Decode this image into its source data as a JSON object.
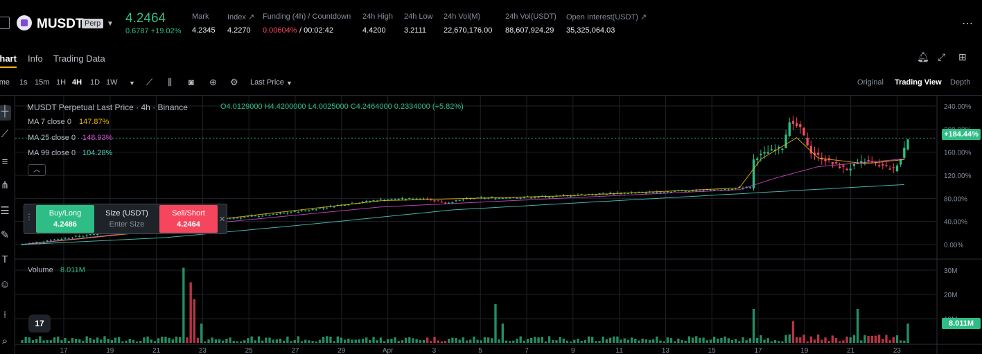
{
  "header": {
    "symbol": "MUSDT",
    "badge": "Perp",
    "price": "4.2464",
    "change": "0.6787 +19.02%",
    "stats": [
      {
        "label": "Mark",
        "value": "4.2345"
      },
      {
        "label": "Index ↗",
        "value": "4.2270"
      },
      {
        "label": "Funding (4h) / Countdown",
        "value": "0.00604%",
        "value2": "/ 00:02:42"
      },
      {
        "label": "24h High",
        "value": "4.4200"
      },
      {
        "label": "24h Low",
        "value": "3.2111"
      },
      {
        "label": "24h Vol(M)",
        "value": "22,670,176.00"
      },
      {
        "label": "24h Vol(USDT)",
        "value": "88,607,924.29"
      },
      {
        "label": "Open Interest(USDT) ↗",
        "value": "35,325,064.03"
      }
    ],
    "more_icon": "⋯"
  },
  "tabs": [
    "Chart",
    "Info",
    "Trading Data"
  ],
  "toolbar": {
    "time_label": "Time",
    "intervals": [
      "1s",
      "15m",
      "1H",
      "4H",
      "1D",
      "1W"
    ],
    "active_interval": "4H",
    "price_source": "Last Price",
    "views": [
      "Original",
      "Trading View",
      "Depth"
    ],
    "active_view": "Trading View"
  },
  "legend": {
    "title": "MUSDT Perpetual Last Price · 4h · Binance",
    "ohlc": "O4.0129000  H4.4200000  L4.0025000  C4.2464000  0.2334000 (+5.82%)",
    "ma7_label": "MA 7 close 0",
    "ma7_value": "147.87%",
    "ma25_label": "MA 25 close 0",
    "ma25_value": "148.93%",
    "ma99_label": "MA 99 close 0",
    "ma99_value": "104.28%",
    "volume_label": "Volume",
    "volume_value": "8.011M"
  },
  "trade_widget": {
    "buy_label": "Buy/Long",
    "buy_price": "4.2486",
    "size_label": "Size (USDT)",
    "size_placeholder": "Enter Size",
    "sell_label": "Sell/Short",
    "sell_price": "4.2464"
  },
  "price_tag": "+184.44%",
  "volume_tag": "8.011M",
  "tv_logo": "17",
  "colors": {
    "up": "#2ebd85",
    "down": "#f6465d",
    "ma7": "#f0b90b",
    "ma25": "#d54bd3",
    "ma99": "#4fd1c5",
    "accent": "#f0b90b"
  },
  "chart_data": {
    "type": "candlestick",
    "y_axis": [
      "240.00%",
      "200.00%",
      "160.00%",
      "120.00%",
      "80.00%",
      "40.00%",
      "0.00%"
    ],
    "y_range": [
      0,
      240
    ],
    "volume_axis": [
      "30M",
      "20M",
      "10M"
    ],
    "x_axis": [
      "17",
      "19",
      "21",
      "23",
      "25",
      "27",
      "29",
      "Apr",
      "3",
      "5",
      "7",
      "9",
      "11",
      "13",
      "15",
      "17",
      "19",
      "21",
      "23"
    ],
    "price_segments": [
      [
        0,
        0
      ],
      [
        5,
        5
      ],
      [
        15,
        14
      ],
      [
        25,
        22
      ],
      [
        34,
        27
      ],
      [
        41,
        28
      ],
      [
        45,
        68
      ],
      [
        49,
        42
      ],
      [
        55,
        44
      ],
      [
        70,
        52
      ],
      [
        80,
        60
      ],
      [
        88,
        68
      ],
      [
        100,
        78
      ],
      [
        112,
        80
      ],
      [
        118,
        72
      ],
      [
        125,
        80
      ],
      [
        140,
        82
      ],
      [
        150,
        84
      ],
      [
        160,
        88
      ],
      [
        172,
        90
      ],
      [
        180,
        92
      ],
      [
        188,
        94
      ],
      [
        196,
        96
      ],
      [
        203,
        100
      ],
      [
        204,
        150
      ],
      [
        208,
        160
      ],
      [
        212,
        168
      ],
      [
        214,
        215
      ],
      [
        217,
        200
      ],
      [
        220,
        160
      ],
      [
        226,
        140
      ],
      [
        230,
        130
      ],
      [
        235,
        145
      ],
      [
        240,
        135
      ],
      [
        243,
        130
      ],
      [
        245,
        150
      ],
      [
        247,
        184.44
      ]
    ],
    "ma7_segments": [
      [
        0,
        0
      ],
      [
        40,
        25
      ],
      [
        46,
        48
      ],
      [
        55,
        44
      ],
      [
        100,
        76
      ],
      [
        150,
        84
      ],
      [
        200,
        98
      ],
      [
        206,
        148
      ],
      [
        212,
        170
      ],
      [
        216,
        185
      ],
      [
        222,
        150
      ],
      [
        235,
        140
      ],
      [
        247,
        147.87
      ]
    ],
    "ma25_segments": [
      [
        0,
        0
      ],
      [
        30,
        20
      ],
      [
        50,
        35
      ],
      [
        100,
        65
      ],
      [
        150,
        80
      ],
      [
        200,
        95
      ],
      [
        210,
        115
      ],
      [
        222,
        135
      ],
      [
        247,
        148.93
      ]
    ],
    "ma99_segments": [
      [
        0,
        0
      ],
      [
        40,
        12
      ],
      [
        80,
        35
      ],
      [
        120,
        60
      ],
      [
        160,
        74
      ],
      [
        200,
        88
      ],
      [
        220,
        95
      ],
      [
        247,
        104.28
      ]
    ],
    "volume_spikes": [
      [
        45,
        31
      ],
      [
        47,
        25
      ],
      [
        48,
        18
      ],
      [
        50,
        8
      ],
      [
        132,
        16
      ],
      [
        134,
        8
      ],
      [
        204,
        14
      ],
      [
        215,
        9
      ],
      [
        233,
        14
      ],
      [
        247,
        8.011
      ]
    ],
    "candle_count": 248
  }
}
